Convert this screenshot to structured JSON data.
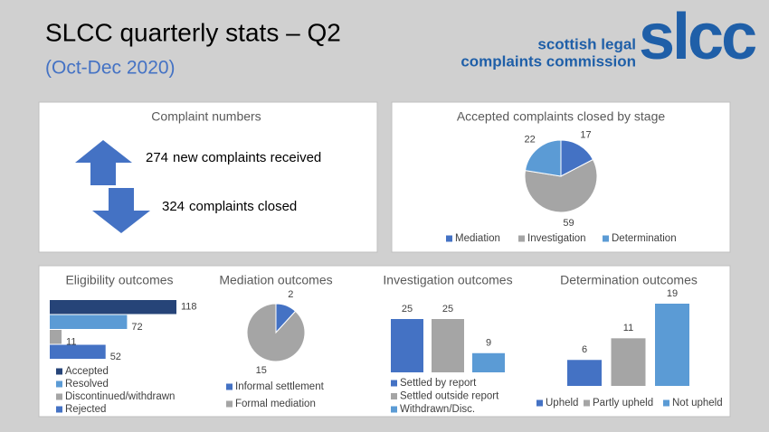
{
  "header": {
    "title": "SLCC quarterly stats – Q2",
    "subtitle": "(Oct-Dec 2020)",
    "logo_line1": "scottish legal",
    "logo_line2": "complaints commission",
    "logo_mark": "slcc"
  },
  "complaint_numbers": {
    "title": "Complaint numbers",
    "received": 274,
    "received_label": "new complaints received",
    "closed": 324,
    "closed_label": "complaints closed"
  },
  "chart_data": [
    {
      "type": "pie",
      "title": "Accepted complaints closed by stage",
      "categories": [
        "Mediation",
        "Investigation",
        "Determination"
      ],
      "values": [
        17,
        59,
        22
      ],
      "colors": [
        "#4472c4",
        "#a5a5a5",
        "#5b9bd5"
      ],
      "legend": "bottom"
    },
    {
      "type": "bar",
      "orientation": "horizontal",
      "title": "Eligibility outcomes",
      "categories": [
        "Accepted",
        "Resolved",
        "Discontinued/withdrawn",
        "Rejected"
      ],
      "values": [
        118,
        72,
        11,
        52
      ],
      "colors": [
        "#264478",
        "#5b9bd5",
        "#a5a5a5",
        "#4472c4"
      ],
      "legend": "bottom"
    },
    {
      "type": "pie",
      "title": "Mediation outcomes",
      "categories": [
        "Informal settlement",
        "Formal mediation"
      ],
      "values": [
        2,
        15
      ],
      "colors": [
        "#4472c4",
        "#a5a5a5"
      ],
      "legend": "bottom"
    },
    {
      "type": "bar",
      "title": "Investigation outcomes",
      "categories": [
        "Settled by report",
        "Settled outside report",
        "Withdrawn/Disc."
      ],
      "values": [
        25,
        25,
        9
      ],
      "colors": [
        "#4472c4",
        "#a5a5a5",
        "#5b9bd5"
      ],
      "legend": "bottom"
    },
    {
      "type": "bar",
      "title": "Determination outcomes",
      "categories": [
        "Upheld",
        "Partly upheld",
        "Not upheld"
      ],
      "values": [
        6,
        11,
        19
      ],
      "colors": [
        "#4472c4",
        "#a5a5a5",
        "#5b9bd5"
      ],
      "legend": "bottom"
    }
  ]
}
